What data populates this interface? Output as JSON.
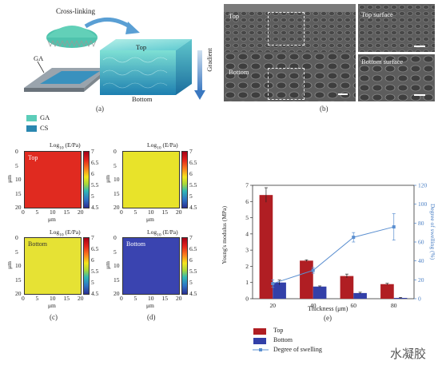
{
  "panel_a": {
    "letter": "(a)",
    "cross_linking": "Cross-linking",
    "ga": "GA",
    "top": "Top",
    "bottom": "Bottom",
    "gradient": "Gradient"
  },
  "panel_b": {
    "letter": "(b)",
    "top": "Top",
    "bottom": "Bottom",
    "top_surface": "Top surface",
    "bottom_surface": "Bottom surface"
  },
  "legend_ab": {
    "items": [
      {
        "label": "GA",
        "color": "#5ccdb9"
      },
      {
        "label": "CS",
        "color": "#2a87b0"
      }
    ]
  },
  "heatmaps": {
    "title_prefix": "Log",
    "title_sub": "10",
    "title_suffix": " (E/Pa)",
    "x_label": "μm",
    "y_label": "μm",
    "x_ticks": [
      "0",
      "5",
      "10",
      "15",
      "20"
    ],
    "y_ticks": [
      "0",
      "5",
      "10",
      "15",
      "20"
    ],
    "cb_ticks": [
      "7",
      "6.5",
      "6",
      "5.5",
      "5",
      "4.5"
    ],
    "cells": [
      {
        "label": "Top",
        "color": "#e02a20"
      },
      {
        "label": "",
        "color": "#e8e32a"
      },
      {
        "label": "Bottom",
        "color": "#e6e234"
      },
      {
        "label": "Bottom",
        "color": "#3a44b0"
      }
    ],
    "letter_c": "(c)",
    "letter_d": "(d)"
  },
  "chart_data": {
    "type": "bar",
    "categories": [
      "20",
      "40",
      "60",
      "80"
    ],
    "series": [
      {
        "name": "Top",
        "type": "bar",
        "color": "#b01e23",
        "values": [
          6.4,
          2.35,
          1.4,
          0.9
        ],
        "errors": [
          0.45,
          0.05,
          0.12,
          0.05
        ]
      },
      {
        "name": "Bottom",
        "type": "bar",
        "color": "#3340a8",
        "values": [
          1.0,
          0.75,
          0.35,
          0.05
        ],
        "errors": [
          0.15,
          0.04,
          0.05,
          0.03
        ]
      },
      {
        "name": "Degree of swelling",
        "type": "line",
        "color": "#5b8fd0",
        "values": [
          16,
          30,
          65,
          76
        ],
        "errors": [
          4,
          3,
          5,
          14
        ]
      }
    ],
    "xlabel": "Thickness (μm)",
    "ylabel": "Young's modulus (MPa)",
    "y2label": "Degree of swelling (%)",
    "ylim": [
      0,
      7
    ],
    "y2lim": [
      0,
      120
    ],
    "yticks": [
      0,
      1,
      2,
      3,
      4,
      5,
      6,
      7
    ],
    "y2ticks": [
      0,
      20,
      40,
      60,
      80,
      100,
      120
    ],
    "letter": "(e)"
  },
  "watermark": "水凝胶"
}
